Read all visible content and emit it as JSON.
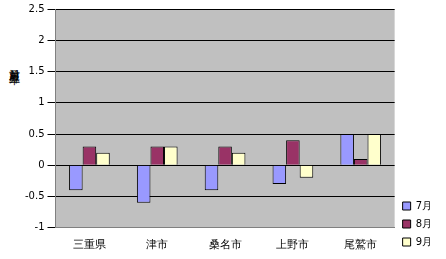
{
  "chart_data": {
    "type": "bar",
    "ylabel": "対前月上昇率",
    "categories": [
      "三重県",
      "津市",
      "桑名市",
      "上野市",
      "尾鷲市"
    ],
    "series": [
      {
        "name": "7月",
        "color": "#9999ff",
        "values": [
          -0.4,
          -0.6,
          -0.4,
          -0.3,
          0.5
        ]
      },
      {
        "name": "8月",
        "color": "#993366",
        "values": [
          0.3,
          0.3,
          0.3,
          0.4,
          0.1
        ]
      },
      {
        "name": "9月",
        "color": "#ffffcc",
        "values": [
          0.2,
          0.3,
          0.2,
          -0.2,
          0.5
        ]
      }
    ],
    "ylim": [
      -1,
      2.5
    ],
    "yticks": [
      -1,
      -0.5,
      0,
      0.5,
      1,
      1.5,
      2,
      2.5
    ],
    "grid": true,
    "legend": "lower right"
  }
}
